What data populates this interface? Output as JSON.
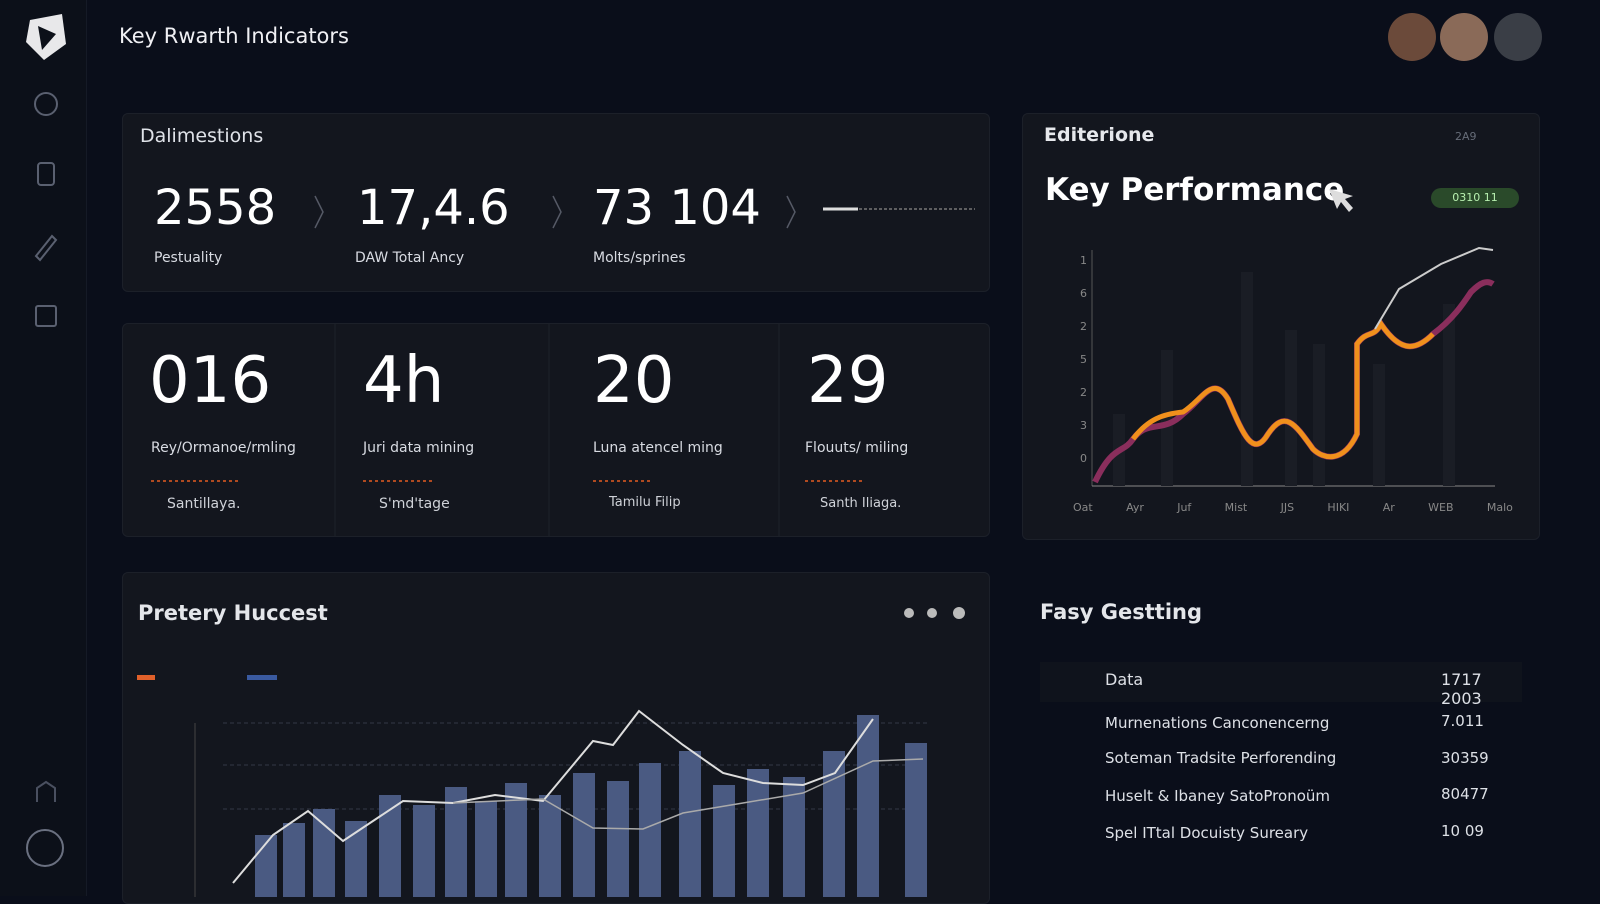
{
  "header": {
    "title": "Key Rwarth Indicators"
  },
  "summary": {
    "title": "Dalimestions",
    "stats": [
      {
        "value": "2558",
        "label": "Pestuality"
      },
      {
        "value": "17,4.6",
        "label": "DAW Total Ancy"
      },
      {
        "value": "73 104",
        "label": "Molts/sprines"
      }
    ]
  },
  "kpis": [
    {
      "value": "016",
      "label": "Rey/Ormanoe/rmling",
      "owner": "Santillaya."
    },
    {
      "value": "4h",
      "label": "Juri data mining",
      "owner": "S'md'tage"
    },
    {
      "value": "20",
      "label": "Luna atencel ming",
      "owner": "Tamilu Filip"
    },
    {
      "value": "29",
      "label": "Flouuts/ miling",
      "owner": "Santh Iliaga."
    }
  ],
  "performance": {
    "tag": "Editerione",
    "title": "Key Performance",
    "badge": "2A9",
    "pill": "0310 11",
    "y_labels": [
      "1",
      "6",
      "2",
      "5",
      "2",
      "3",
      "0"
    ],
    "x_labels": [
      "Oat",
      "Ayr",
      "Juf",
      "Mist",
      "JJS",
      "HIKI",
      "Ar",
      "WEB",
      "Malo"
    ]
  },
  "chart_panel": {
    "title": "Pretery Huccest"
  },
  "table": {
    "title": "Fasy Gestting",
    "rows": [
      [
        "Data",
        "1717 2003"
      ],
      [
        "Murnenations Canconencerng",
        "7.011"
      ],
      [
        "Soteman Tradsite Perforending",
        "30359"
      ],
      [
        "Huselt & Ibaney SatoPronoüm",
        "80477"
      ],
      [
        "Spel ITtal Docuisty Sureary",
        "10 09"
      ]
    ]
  }
}
